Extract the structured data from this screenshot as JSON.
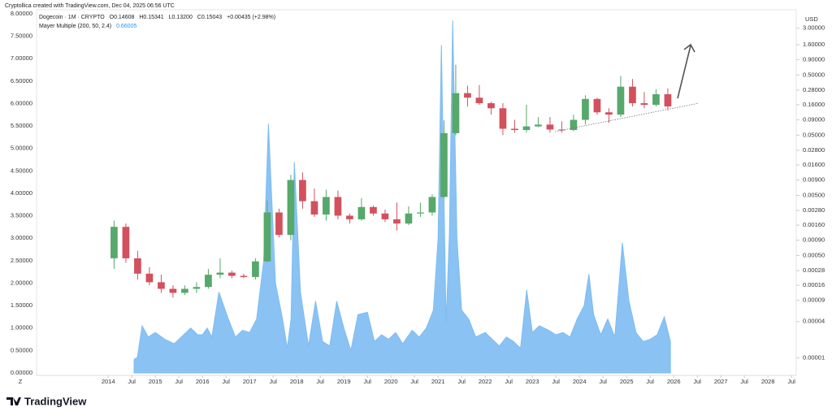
{
  "header": {
    "credit": "Cryptollica created with TradingView.com, Dec 04, 2025 06:56 UTC",
    "symbol": "Dogecoin · 1M · CRYPTO",
    "open": "O0.14608",
    "high": "H0.15341",
    "low": "L0.13200",
    "close": "C0.15043",
    "change": "+0.00435 (+2.98%)",
    "indicator": "Mayer Multiple (200, 50, 2.4)",
    "indicator_value": "0.66005",
    "corner": "Z",
    "brand": "TradingView"
  },
  "chart_data": [
    {
      "type": "area",
      "color": "#7dbcf2",
      "xlim": [
        2012.48,
        2028.6
      ],
      "xticks": [
        2014,
        {
          "value": 2014.5,
          "label": "Jul"
        },
        2015,
        {
          "value": 2015.5,
          "label": "Jul"
        },
        2016,
        {
          "value": 2016.5,
          "label": "Jul"
        },
        2017,
        {
          "value": 2017.5,
          "label": "Jul"
        },
        2018,
        {
          "value": 2018.5,
          "label": "Jul"
        },
        2019,
        {
          "value": 2019.5,
          "label": "Jul"
        },
        2020,
        {
          "value": 2020.5,
          "label": "Jul"
        },
        2021,
        {
          "value": 2021.5,
          "label": "Jul"
        },
        2022,
        {
          "value": 2022.5,
          "label": "Jul"
        },
        2023,
        {
          "value": 2023.5,
          "label": "Jul"
        },
        2024,
        {
          "value": 2024.5,
          "label": "Jul"
        },
        2025,
        {
          "value": 2025.5,
          "label": "Jul"
        },
        2026,
        {
          "value": 2026.5,
          "label": "Jul"
        },
        2027,
        {
          "value": 2027.5,
          "label": "Jul"
        },
        2028,
        {
          "value": 2028.5,
          "label": "Jul"
        }
      ],
      "ylim": [
        0,
        8
      ],
      "yticks": [
        {
          "value": 0,
          "label": "0.00000"
        },
        {
          "value": 0.5,
          "label": "0.50000"
        },
        {
          "value": 1,
          "label": "1.00000"
        },
        {
          "value": 1.5,
          "label": "1.50000"
        },
        {
          "value": 2,
          "label": "2.00000"
        },
        {
          "value": 2.5,
          "label": "2.50000"
        },
        {
          "value": 3,
          "label": "3.00000"
        },
        {
          "value": 3.5,
          "label": "3.50000"
        },
        {
          "value": 4,
          "label": "4.00000"
        },
        {
          "value": 4.5,
          "label": "4.50000"
        },
        {
          "value": 5,
          "label": "5.00000"
        },
        {
          "value": 5.5,
          "label": "5.50000"
        },
        {
          "value": 6,
          "label": "6.00000"
        },
        {
          "value": 6.5,
          "label": "6.50000"
        },
        {
          "value": 7,
          "label": "7.00000"
        },
        {
          "value": 7.5,
          "label": "7.50000"
        },
        {
          "value": 8,
          "label": "8.00000"
        }
      ],
      "x": [
        2014.55,
        2014.62,
        2014.72,
        2014.85,
        2015.0,
        2015.2,
        2015.4,
        2015.55,
        2015.75,
        2015.9,
        2016.0,
        2016.1,
        2016.2,
        2016.35,
        2016.55,
        2016.7,
        2016.85,
        2017.0,
        2017.15,
        2017.3,
        2017.4,
        2017.55,
        2017.7,
        2017.8,
        2017.88,
        2017.95,
        2018.08,
        2018.25,
        2018.4,
        2018.55,
        2018.7,
        2018.85,
        2019.0,
        2019.15,
        2019.3,
        2019.5,
        2019.65,
        2019.8,
        2019.95,
        2020.1,
        2020.25,
        2020.45,
        2020.6,
        2020.75,
        2020.9,
        2021.0,
        2021.07,
        2021.17,
        2021.24,
        2021.31,
        2021.4,
        2021.5,
        2021.65,
        2021.8,
        2022.0,
        2022.15,
        2022.3,
        2022.45,
        2022.6,
        2022.75,
        2022.88,
        2023.0,
        2023.15,
        2023.35,
        2023.5,
        2023.65,
        2023.8,
        2023.95,
        2024.1,
        2024.2,
        2024.3,
        2024.45,
        2024.6,
        2024.75,
        2024.91,
        2025.05,
        2025.2,
        2025.35,
        2025.5,
        2025.65,
        2025.8,
        2025.93
      ],
      "values": [
        0.3,
        0.35,
        1.05,
        0.8,
        0.9,
        0.75,
        0.65,
        0.8,
        1.0,
        0.85,
        0.85,
        1.0,
        0.8,
        1.8,
        1.2,
        0.8,
        0.95,
        0.9,
        1.2,
        2.5,
        5.55,
        2.0,
        1.2,
        0.55,
        1.2,
        4.7,
        1.8,
        0.6,
        1.6,
        0.7,
        0.6,
        1.6,
        1.0,
        0.5,
        1.3,
        1.35,
        0.7,
        0.85,
        0.75,
        0.9,
        0.65,
        0.95,
        0.8,
        1.0,
        1.4,
        3.0,
        7.3,
        1.1,
        3.1,
        7.85,
        3.0,
        1.4,
        1.2,
        0.8,
        0.9,
        0.75,
        0.6,
        0.8,
        0.7,
        0.55,
        1.85,
        0.9,
        1.05,
        0.95,
        0.85,
        0.9,
        0.8,
        1.2,
        1.5,
        2.2,
        1.3,
        0.85,
        1.2,
        0.8,
        2.9,
        1.6,
        0.9,
        0.7,
        0.75,
        0.85,
        1.25,
        0.7
      ]
    },
    {
      "type": "candlestick",
      "log_scale": true,
      "y_label": "USD",
      "up_color": "#56a86b",
      "down_color": "#d2515d",
      "ylim": [
        5.6e-06,
        5.2
      ],
      "yticks": [
        {
          "value": 3,
          "label": "3.00000"
        },
        {
          "value": 1.6,
          "label": "1.60000"
        },
        {
          "value": 0.9,
          "label": "0.90000"
        },
        {
          "value": 0.5,
          "label": "0.50000"
        },
        {
          "value": 0.28,
          "label": "0.28000"
        },
        {
          "value": 0.16,
          "label": "0.16000"
        },
        {
          "value": 0.09,
          "label": "0.09000"
        },
        {
          "value": 0.05,
          "label": "0.05000"
        },
        {
          "value": 0.028,
          "label": "0.02800"
        },
        {
          "value": 0.016,
          "label": "0.01600"
        },
        {
          "value": 0.009,
          "label": "0.00900"
        },
        {
          "value": 0.005,
          "label": "0.00500"
        },
        {
          "value": 0.0028,
          "label": "0.00280"
        },
        {
          "value": 0.0016,
          "label": "0.00160"
        },
        {
          "value": 0.0009,
          "label": "0.00090"
        },
        {
          "value": 0.0005,
          "label": "0.00050"
        },
        {
          "value": 0.00028,
          "label": "0.00028"
        },
        {
          "value": 0.00016,
          "label": "0.00016"
        },
        {
          "value": 9e-05,
          "label": "0.00009"
        },
        {
          "value": 4e-05,
          "label": "0.00004"
        },
        {
          "value": 1e-05,
          "label": "0.00001"
        }
      ],
      "x": [
        2014.125,
        2014.375,
        2014.625,
        2014.875,
        2015.125,
        2015.375,
        2015.625,
        2015.875,
        2016.125,
        2016.375,
        2016.625,
        2016.875,
        2017.125,
        2017.375,
        2017.625,
        2017.875,
        2018.125,
        2018.375,
        2018.625,
        2018.875,
        2019.125,
        2019.375,
        2019.625,
        2019.875,
        2020.125,
        2020.375,
        2020.625,
        2020.875,
        2021.125,
        2021.375,
        2021.625,
        2021.875,
        2022.125,
        2022.375,
        2022.625,
        2022.875,
        2023.125,
        2023.375,
        2023.625,
        2023.875,
        2024.125,
        2024.375,
        2024.625,
        2024.875,
        2025.125,
        2025.375,
        2025.625,
        2025.875
      ],
      "open": [
        0.00045,
        0.0015,
        0.00045,
        0.00025,
        0.00018,
        0.00014,
        0.00012,
        0.00014,
        0.00015,
        0.00024,
        0.00026,
        0.00023,
        0.00022,
        0.0004,
        0.0026,
        0.0011,
        0.009,
        0.004,
        0.0024,
        0.0047,
        0.0023,
        0.002,
        0.0032,
        0.0025,
        0.002,
        0.0017,
        0.0025,
        0.0026,
        0.0047,
        0.054,
        0.25,
        0.21,
        0.17,
        0.14,
        0.064,
        0.061,
        0.07,
        0.075,
        0.062,
        0.061,
        0.09,
        0.2,
        0.12,
        0.11,
        0.32,
        0.17,
        0.16,
        0.24
      ],
      "high": [
        0.0019,
        0.0017,
        0.0006,
        0.00032,
        0.00024,
        0.00016,
        0.00016,
        0.00018,
        0.0003,
        0.00045,
        0.00028,
        0.00025,
        0.00045,
        0.0041,
        0.003,
        0.011,
        0.012,
        0.0065,
        0.0062,
        0.006,
        0.0025,
        0.0045,
        0.0034,
        0.0029,
        0.0038,
        0.0033,
        0.0038,
        0.0052,
        0.088,
        0.74,
        0.33,
        0.34,
        0.18,
        0.17,
        0.09,
        0.16,
        0.1,
        0.1,
        0.085,
        0.11,
        0.23,
        0.21,
        0.14,
        0.48,
        0.43,
        0.26,
        0.29,
        0.3
      ],
      "low": [
        0.0003,
        0.00038,
        0.0002,
        0.00016,
        0.00012,
        0.0001,
        0.00011,
        0.00012,
        0.00014,
        0.00021,
        0.00021,
        0.00021,
        0.0002,
        0.00039,
        0.001,
        0.0009,
        0.003,
        0.0022,
        0.0019,
        0.002,
        0.0017,
        0.0019,
        0.0023,
        0.0018,
        0.0013,
        0.0016,
        0.0022,
        0.0023,
        0.0046,
        0.05,
        0.15,
        0.16,
        0.11,
        0.05,
        0.055,
        0.055,
        0.068,
        0.055,
        0.055,
        0.058,
        0.075,
        0.11,
        0.08,
        0.1,
        0.15,
        0.14,
        0.15,
        0.13
      ],
      "close": [
        0.0015,
        0.00045,
        0.00025,
        0.00018,
        0.00014,
        0.00012,
        0.00014,
        0.00015,
        0.00024,
        0.00026,
        0.00023,
        0.00022,
        0.0004,
        0.0026,
        0.0011,
        0.009,
        0.004,
        0.0024,
        0.0047,
        0.0023,
        0.002,
        0.0032,
        0.0025,
        0.002,
        0.0017,
        0.0025,
        0.0026,
        0.0047,
        0.054,
        0.25,
        0.21,
        0.17,
        0.14,
        0.064,
        0.061,
        0.07,
        0.075,
        0.062,
        0.061,
        0.09,
        0.2,
        0.12,
        0.11,
        0.32,
        0.17,
        0.16,
        0.24,
        0.15043
      ]
    }
  ]
}
